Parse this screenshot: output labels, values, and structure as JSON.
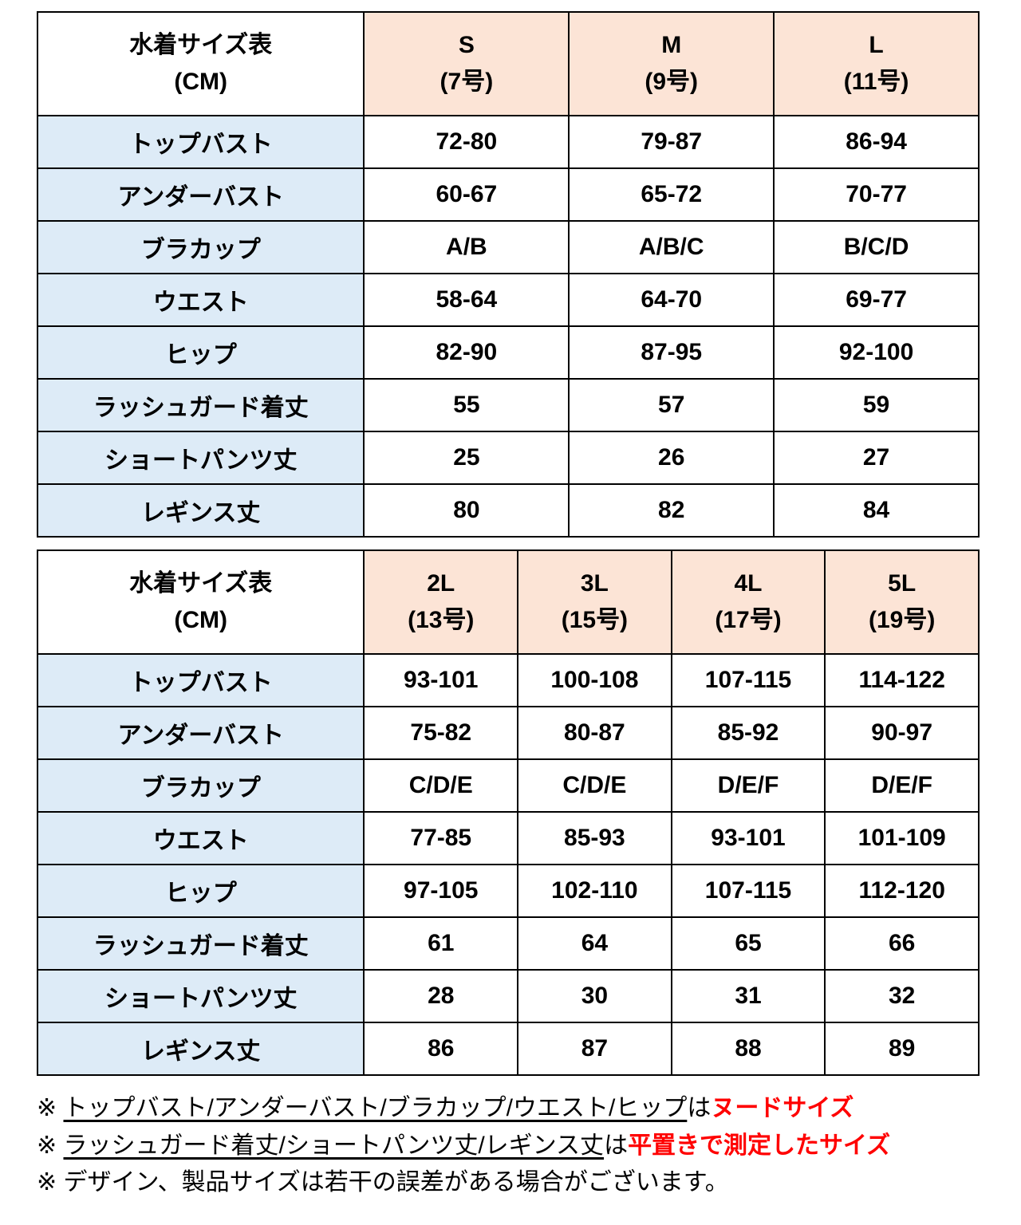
{
  "colors": {
    "header_peach": "#fce4d6",
    "label_blue": "#ddebf7",
    "border": "#000000",
    "note_red": "#ff0000"
  },
  "tables": [
    {
      "title_line1": "水着サイズ表",
      "title_line2": "(CM)",
      "columns": [
        {
          "size": "S",
          "num": "(7号)"
        },
        {
          "size": "M",
          "num": "(9号)"
        },
        {
          "size": "L",
          "num": "(11号)"
        }
      ],
      "rows": [
        {
          "label": "トップバスト",
          "values": [
            "72-80",
            "79-87",
            "86-94"
          ]
        },
        {
          "label": "アンダーバスト",
          "values": [
            "60-67",
            "65-72",
            "70-77"
          ]
        },
        {
          "label": "ブラカップ",
          "values": [
            "A/B",
            "A/B/C",
            "B/C/D"
          ]
        },
        {
          "label": "ウエスト",
          "values": [
            "58-64",
            "64-70",
            "69-77"
          ]
        },
        {
          "label": "ヒップ",
          "values": [
            "82-90",
            "87-95",
            "92-100"
          ]
        },
        {
          "label": "ラッシュガード着丈",
          "values": [
            "55",
            "57",
            "59"
          ]
        },
        {
          "label": "ショートパンツ丈",
          "values": [
            "25",
            "26",
            "27"
          ]
        },
        {
          "label": "レギンス丈",
          "values": [
            "80",
            "82",
            "84"
          ]
        }
      ]
    },
    {
      "title_line1": "水着サイズ表",
      "title_line2": "(CM)",
      "columns": [
        {
          "size": "2L",
          "num": "(13号)"
        },
        {
          "size": "3L",
          "num": "(15号)"
        },
        {
          "size": "4L",
          "num": "(17号)"
        },
        {
          "size": "5L",
          "num": "(19号)"
        }
      ],
      "rows": [
        {
          "label": "トップバスト",
          "values": [
            "93-101",
            "100-108",
            "107-115",
            "114-122"
          ]
        },
        {
          "label": "アンダーバスト",
          "values": [
            "75-82",
            "80-87",
            "85-92",
            "90-97"
          ]
        },
        {
          "label": "ブラカップ",
          "values": [
            "C/D/E",
            "C/D/E",
            "D/E/F",
            "D/E/F"
          ]
        },
        {
          "label": "ウエスト",
          "values": [
            "77-85",
            "85-93",
            "93-101",
            "101-109"
          ]
        },
        {
          "label": "ヒップ",
          "values": [
            "97-105",
            "102-110",
            "107-115",
            "112-120"
          ]
        },
        {
          "label": "ラッシュガード着丈",
          "values": [
            "61",
            "64",
            "65",
            "66"
          ]
        },
        {
          "label": "ショートパンツ丈",
          "values": [
            "28",
            "30",
            "31",
            "32"
          ]
        },
        {
          "label": "レギンス丈",
          "values": [
            "86",
            "87",
            "88",
            "89"
          ]
        }
      ]
    }
  ],
  "notes": [
    {
      "segments": [
        {
          "text": "※ ",
          "style": "plain"
        },
        {
          "text": "トップバスト/アンダーバスト/ブラカップ/ウエスト/ヒップ",
          "style": "underline"
        },
        {
          "text": "は",
          "style": "plain"
        },
        {
          "text": "ヌードサイズ",
          "style": "red"
        }
      ]
    },
    {
      "segments": [
        {
          "text": "※ ",
          "style": "plain"
        },
        {
          "text": "ラッシュガード着丈/ショートパンツ丈/レギンス丈",
          "style": "underline"
        },
        {
          "text": "は",
          "style": "plain"
        },
        {
          "text": "平置きで測定したサイズ",
          "style": "red"
        }
      ]
    },
    {
      "segments": [
        {
          "text": "※ デザイン、製品サイズは若干の誤差がある場合がございます。",
          "style": "plain"
        }
      ]
    }
  ]
}
